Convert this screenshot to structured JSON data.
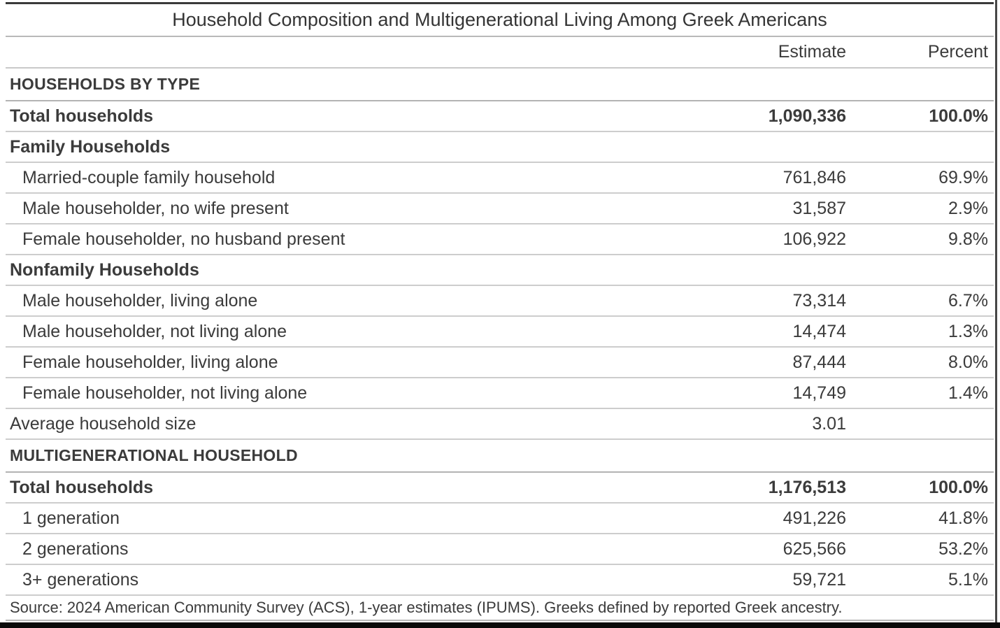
{
  "chart_data": {
    "type": "table",
    "title": "Household Composition and Multigenerational Living Among Greek Americans",
    "columns": {
      "estimate": "Estimate",
      "percent": "Percent"
    },
    "rows": [
      {
        "label": "HOUSEHOLDS BY TYPE",
        "estimate": "",
        "percent": "",
        "style": "section"
      },
      {
        "label": "Total households",
        "estimate": "1,090,336",
        "percent": "100.0%",
        "style": "bold"
      },
      {
        "label": "Family Households",
        "estimate": "",
        "percent": "",
        "style": "bold"
      },
      {
        "label": "Married-couple family household",
        "estimate": "761,846",
        "percent": "69.9%",
        "style": "indent"
      },
      {
        "label": "Male householder, no wife present",
        "estimate": "31,587",
        "percent": "2.9%",
        "style": "indent"
      },
      {
        "label": "Female householder, no husband present",
        "estimate": "106,922",
        "percent": "9.8%",
        "style": "indent"
      },
      {
        "label": "Nonfamily Households",
        "estimate": "",
        "percent": "",
        "style": "bold"
      },
      {
        "label": "Male householder, living alone",
        "estimate": "73,314",
        "percent": "6.7%",
        "style": "indent"
      },
      {
        "label": "Male householder, not living alone",
        "estimate": "14,474",
        "percent": "1.3%",
        "style": "indent"
      },
      {
        "label": "Female householder, living alone",
        "estimate": "87,444",
        "percent": "8.0%",
        "style": "indent"
      },
      {
        "label": "Female householder, not living alone",
        "estimate": "14,749",
        "percent": "1.4%",
        "style": "indent"
      },
      {
        "label": "Average household size",
        "estimate": "3.01",
        "percent": "",
        "style": "plain"
      },
      {
        "label": "MULTIGENERATIONAL HOUSEHOLD",
        "estimate": "",
        "percent": "",
        "style": "section"
      },
      {
        "label": "Total households",
        "estimate": "1,176,513",
        "percent": "100.0%",
        "style": "bold"
      },
      {
        "label": "1 generation",
        "estimate": "491,226",
        "percent": "41.8%",
        "style": "indent"
      },
      {
        "label": "2 generations",
        "estimate": "625,566",
        "percent": "53.2%",
        "style": "indent"
      },
      {
        "label": "3+ generations",
        "estimate": "59,721",
        "percent": "5.1%",
        "style": "indent"
      }
    ],
    "source_note": "Source: 2024 American Community Survey (ACS), 1-year estimates (IPUMS). Greeks defined by reported Greek ancestry.",
    "layout_hints": {
      "estimate_align": "right",
      "percent_align": "right",
      "grid": "horizontal-rules"
    }
  },
  "colors": {
    "text": "#3b3b3b",
    "top_rule": "#3a3a3a",
    "row_line": "#cdcdcd",
    "section_line": "#b3b3b3",
    "window_frame": "#0a0a0a"
  }
}
